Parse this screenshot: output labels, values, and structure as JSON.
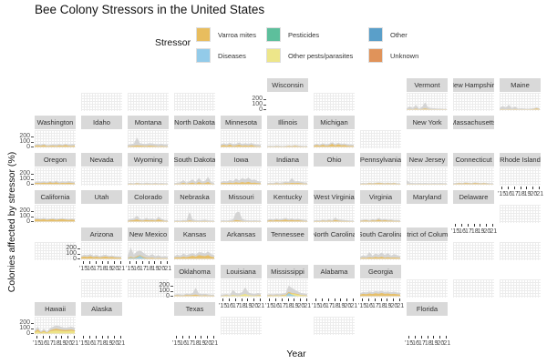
{
  "chart_data": {
    "type": "area",
    "title": "Bee Colony Stressors in the United States",
    "xlabel": "Year",
    "ylabel": "Colonies affected by stressor (%)",
    "ylim": [
      -10,
      320
    ],
    "y_ticks": [
      "200",
      "100",
      "0"
    ],
    "x_tick_labels": [
      "'15",
      "'16",
      "'17",
      "'18",
      "'19",
      "'20",
      "'21"
    ],
    "legend": {
      "title": "Stressor",
      "placement": "top",
      "entries": [
        {
          "label": "Varroa mites",
          "color": "#E8BD5E"
        },
        {
          "label": "Diseases",
          "color": "#93CBE9"
        },
        {
          "label": "Pesticides",
          "color": "#5DBF9C"
        },
        {
          "label": "Other pests/parasites",
          "color": "#EDE68A"
        },
        {
          "label": "Other",
          "color": "#5A9FC9"
        },
        {
          "label": "Unknown",
          "color": "#E0935A"
        }
      ]
    },
    "total_color": "#D3D3D3",
    "states": [
      {
        "name": "Wisconsin"
      },
      {
        "name": "Vermont",
        "total": [
          20,
          60,
          30,
          90,
          20,
          50,
          140,
          40,
          30,
          25,
          20,
          20,
          15,
          15
        ],
        "varroa": [
          5,
          10,
          5,
          15,
          5,
          10,
          20,
          10,
          5,
          5,
          5,
          5,
          5,
          5
        ]
      },
      {
        "name": "New Hampshire"
      },
      {
        "name": "Maine",
        "total": [
          30,
          70,
          40,
          90,
          30,
          60,
          20,
          25,
          20,
          15,
          20,
          25,
          40,
          20
        ],
        "varroa": [
          5,
          10,
          5,
          10,
          5,
          10,
          5,
          5,
          5,
          5,
          5,
          10,
          20,
          10
        ]
      },
      {
        "name": "Washington",
        "total": [
          40,
          55,
          45,
          60,
          35,
          40,
          50,
          45,
          55,
          40,
          60,
          45,
          50,
          55
        ],
        "varroa": [
          20,
          30,
          20,
          35,
          15,
          20,
          25,
          15,
          30,
          20,
          35,
          20,
          15,
          25
        ]
      },
      {
        "name": "Idaho"
      },
      {
        "name": "Montana",
        "total": [
          40,
          50,
          60,
          180,
          70,
          60,
          55,
          70,
          65,
          55,
          50,
          60,
          45,
          50
        ],
        "varroa": [
          10,
          15,
          20,
          30,
          25,
          20,
          15,
          25,
          20,
          15,
          10,
          15,
          10,
          10
        ]
      },
      {
        "name": "North Dakota"
      },
      {
        "name": "Minnesota",
        "total": [
          50,
          70,
          55,
          80,
          50,
          60,
          85,
          55,
          70,
          60,
          75,
          50,
          45,
          40
        ],
        "varroa": [
          20,
          35,
          20,
          45,
          15,
          25,
          40,
          20,
          30,
          20,
          35,
          15,
          10,
          10
        ]
      },
      {
        "name": "Illinois",
        "total": [
          20,
          25,
          20,
          30,
          25,
          20,
          25,
          30,
          25,
          35,
          30,
          25,
          20,
          25
        ],
        "varroa": [
          5,
          8,
          5,
          10,
          8,
          5,
          8,
          15,
          10,
          20,
          12,
          8,
          5,
          8
        ]
      },
      {
        "name": "Michigan",
        "total": [
          40,
          60,
          45,
          70,
          50,
          60,
          90,
          55,
          80,
          60,
          65,
          50,
          45,
          40
        ],
        "varroa": [
          15,
          35,
          20,
          40,
          20,
          30,
          60,
          25,
          50,
          30,
          35,
          20,
          15,
          15
        ]
      },
      {
        "name": "New York"
      },
      {
        "name": "Massachusetts"
      },
      {
        "name": "Oregon",
        "total": [
          40,
          50,
          45,
          55,
          40,
          60,
          45,
          65,
          40,
          55,
          45,
          60,
          50,
          40
        ],
        "varroa": [
          20,
          25,
          20,
          30,
          20,
          35,
          20,
          35,
          15,
          25,
          20,
          30,
          20,
          15
        ]
      },
      {
        "name": "Nevada"
      },
      {
        "name": "Wyoming",
        "total": [
          20,
          25,
          20,
          30,
          25,
          20,
          30,
          25,
          20,
          30,
          20,
          25,
          20,
          20
        ],
        "varroa": [
          5,
          10,
          5,
          15,
          8,
          5,
          10,
          8,
          5,
          10,
          5,
          8,
          5,
          5
        ]
      },
      {
        "name": "South Dakota",
        "total": [
          20,
          30,
          40,
          80,
          30,
          60,
          90,
          40,
          120,
          50,
          60,
          140,
          40,
          30
        ],
        "varroa": [
          5,
          10,
          10,
          25,
          10,
          20,
          30,
          10,
          40,
          15,
          20,
          40,
          10,
          5
        ]
      },
      {
        "name": "Iowa",
        "total": [
          40,
          60,
          50,
          80,
          60,
          110,
          70,
          120,
          90,
          130,
          80,
          90,
          60,
          50
        ],
        "varroa": [
          15,
          25,
          20,
          30,
          20,
          35,
          25,
          40,
          30,
          45,
          25,
          30,
          20,
          15
        ]
      },
      {
        "name": "Indiana",
        "total": [
          20,
          30,
          25,
          40,
          30,
          35,
          50,
          40,
          120,
          50,
          60,
          45,
          35,
          30
        ],
        "varroa": [
          5,
          10,
          8,
          15,
          10,
          10,
          20,
          15,
          25,
          20,
          25,
          15,
          10,
          10
        ]
      },
      {
        "name": "Ohio"
      },
      {
        "name": "Pennsylvania",
        "total": [
          20,
          25,
          20,
          30,
          25,
          30,
          35,
          30,
          25,
          30,
          25,
          30,
          20,
          20
        ],
        "varroa": [
          5,
          10,
          8,
          15,
          10,
          15,
          20,
          15,
          10,
          15,
          10,
          15,
          8,
          8
        ]
      },
      {
        "name": "New Jersey",
        "total": [
          80,
          30,
          25,
          20,
          25,
          20,
          25,
          20,
          20,
          25,
          20,
          25,
          20,
          20
        ],
        "varroa": [
          5,
          5,
          5,
          5,
          5,
          5,
          5,
          5,
          5,
          5,
          5,
          5,
          5,
          5
        ]
      },
      {
        "name": "Connecticut",
        "total": [
          20,
          25,
          30,
          25,
          35,
          30,
          25,
          35,
          30,
          25,
          30,
          25,
          20,
          20
        ],
        "varroa": [
          5,
          10,
          15,
          10,
          20,
          15,
          10,
          20,
          15,
          10,
          15,
          10,
          5,
          5
        ]
      },
      {
        "name": "Rhode Island"
      },
      {
        "name": "California",
        "total": [
          70,
          65,
          60,
          70,
          55,
          60,
          65,
          55,
          60,
          65,
          55,
          50,
          55,
          50
        ],
        "varroa": [
          40,
          45,
          35,
          45,
          30,
          40,
          45,
          30,
          40,
          45,
          35,
          30,
          35,
          30
        ]
      },
      {
        "name": "Utah"
      },
      {
        "name": "Colorado",
        "total": [
          30,
          50,
          60,
          110,
          50,
          40,
          70,
          50,
          60,
          40,
          90,
          50,
          30,
          30
        ],
        "varroa": [
          10,
          20,
          25,
          40,
          20,
          15,
          30,
          20,
          25,
          15,
          40,
          20,
          10,
          10
        ]
      },
      {
        "name": "Nebraska",
        "total": [
          20,
          25,
          20,
          30,
          25,
          180,
          40,
          30,
          25,
          30,
          35,
          25,
          20,
          20
        ],
        "varroa": [
          5,
          8,
          5,
          10,
          8,
          20,
          10,
          8,
          5,
          8,
          10,
          5,
          5,
          5
        ]
      },
      {
        "name": "Missouri",
        "total": [
          20,
          25,
          20,
          30,
          40,
          170,
          190,
          50,
          30,
          25,
          20,
          25,
          20,
          20
        ],
        "varroa": [
          5,
          5,
          5,
          8,
          10,
          30,
          20,
          10,
          5,
          5,
          5,
          5,
          5,
          5
        ]
      },
      {
        "name": "Kentucky",
        "total": [
          30,
          50,
          40,
          60,
          45,
          55,
          70,
          50,
          60,
          45,
          55,
          40,
          35,
          30
        ],
        "varroa": [
          10,
          25,
          15,
          30,
          20,
          25,
          35,
          20,
          30,
          20,
          25,
          15,
          10,
          10
        ]
      },
      {
        "name": "West Virginia",
        "total": [
          20,
          30,
          25,
          35,
          30,
          40,
          30,
          80,
          40,
          35,
          30,
          25,
          20,
          20
        ],
        "varroa": [
          5,
          10,
          8,
          15,
          10,
          15,
          10,
          30,
          15,
          10,
          10,
          8,
          5,
          5
        ]
      },
      {
        "name": "Virginia",
        "total": [
          30,
          35,
          40,
          30,
          45,
          35,
          70,
          40,
          50,
          35,
          40,
          30,
          30,
          25
        ],
        "varroa": [
          10,
          15,
          20,
          10,
          20,
          15,
          35,
          15,
          25,
          15,
          15,
          10,
          10,
          8
        ]
      },
      {
        "name": "Maryland"
      },
      {
        "name": "Delaware"
      },
      {
        "name": "Arizona",
        "total": [
          60,
          80,
          70,
          90,
          60,
          75,
          50,
          70,
          80,
          55,
          65,
          50,
          45,
          40
        ],
        "varroa": [
          30,
          45,
          35,
          50,
          30,
          40,
          25,
          35,
          45,
          30,
          35,
          25,
          20,
          20
        ]
      },
      {
        "name": "New Mexico",
        "total": [
          50,
          220,
          80,
          140,
          160,
          120,
          80,
          60,
          90,
          50,
          70,
          40,
          50,
          40
        ],
        "varroa": [
          10,
          40,
          20,
          50,
          70,
          40,
          20,
          15,
          20,
          10,
          15,
          10,
          10,
          10
        ],
        "diseases": [
          0,
          20,
          10,
          30,
          60,
          20,
          5,
          0,
          0,
          0,
          0,
          0,
          0,
          0
        ]
      },
      {
        "name": "Kansas",
        "total": [
          50,
          80,
          60,
          100,
          70,
          90,
          110,
          80,
          130,
          120,
          100,
          140,
          90,
          70
        ],
        "varroa": [
          20,
          30,
          25,
          40,
          30,
          45,
          60,
          40,
          70,
          60,
          50,
          70,
          40,
          30
        ]
      },
      {
        "name": "Arkansas"
      },
      {
        "name": "Tennessee"
      },
      {
        "name": "North Carolina"
      },
      {
        "name": "South Carolina",
        "total": [
          40,
          70,
          50,
          130,
          60,
          100,
          80,
          120,
          70,
          110,
          60,
          90,
          70,
          50
        ],
        "varroa": [
          10,
          20,
          15,
          30,
          20,
          35,
          25,
          40,
          20,
          30,
          20,
          25,
          20,
          15
        ]
      },
      {
        "name": "District of Columbia"
      },
      {
        "name": "Oklahoma",
        "total": [
          30,
          40,
          35,
          30,
          50,
          40,
          60,
          160,
          50,
          40,
          45,
          35,
          30,
          30
        ],
        "varroa": [
          10,
          15,
          10,
          10,
          20,
          15,
          20,
          30,
          15,
          10,
          15,
          10,
          10,
          10
        ]
      },
      {
        "name": "Louisiana",
        "total": [
          30,
          35,
          40,
          30,
          120,
          60,
          50,
          80,
          170,
          70,
          50,
          40,
          60,
          50
        ],
        "varroa": [
          5,
          10,
          15,
          5,
          20,
          10,
          10,
          20,
          40,
          15,
          10,
          10,
          15,
          20
        ],
        "pests": [
          0,
          5,
          10,
          5,
          15,
          10,
          5,
          30,
          40,
          20,
          10,
          5,
          10,
          10
        ]
      },
      {
        "name": "Mississippi",
        "total": [
          30,
          40,
          35,
          45,
          40,
          50,
          60,
          200,
          160,
          120,
          90,
          60,
          50,
          40
        ],
        "varroa": [
          10,
          15,
          10,
          15,
          10,
          20,
          25,
          80,
          60,
          50,
          40,
          20,
          15,
          10
        ],
        "pests": [
          5,
          5,
          5,
          10,
          5,
          10,
          15,
          40,
          50,
          40,
          30,
          15,
          10,
          5
        ],
        "diseases": [
          0,
          0,
          0,
          0,
          0,
          0,
          0,
          60,
          30,
          10,
          0,
          0,
          0,
          0
        ]
      },
      {
        "name": "Alabama"
      },
      {
        "name": "Georgia",
        "total": [
          60,
          80,
          70,
          90,
          75,
          95,
          85,
          100,
          80,
          90,
          75,
          85,
          70,
          65
        ],
        "varroa": [
          30,
          45,
          35,
          50,
          40,
          55,
          45,
          60,
          45,
          50,
          40,
          45,
          35,
          30
        ]
      },
      {
        "name": "Hawaii",
        "total": [
          60,
          130,
          40,
          90,
          30,
          100,
          130,
          150,
          140,
          120,
          110,
          120,
          130,
          110
        ],
        "varroa": [
          30,
          80,
          20,
          50,
          15,
          60,
          80,
          90,
          80,
          70,
          65,
          70,
          75,
          60
        ],
        "pests": [
          15,
          40,
          10,
          30,
          10,
          40,
          50,
          55,
          50,
          45,
          40,
          45,
          50,
          40
        ]
      },
      {
        "name": "Alaska"
      },
      {
        "name": "Texas"
      },
      {
        "name": "Florida"
      }
    ]
  }
}
